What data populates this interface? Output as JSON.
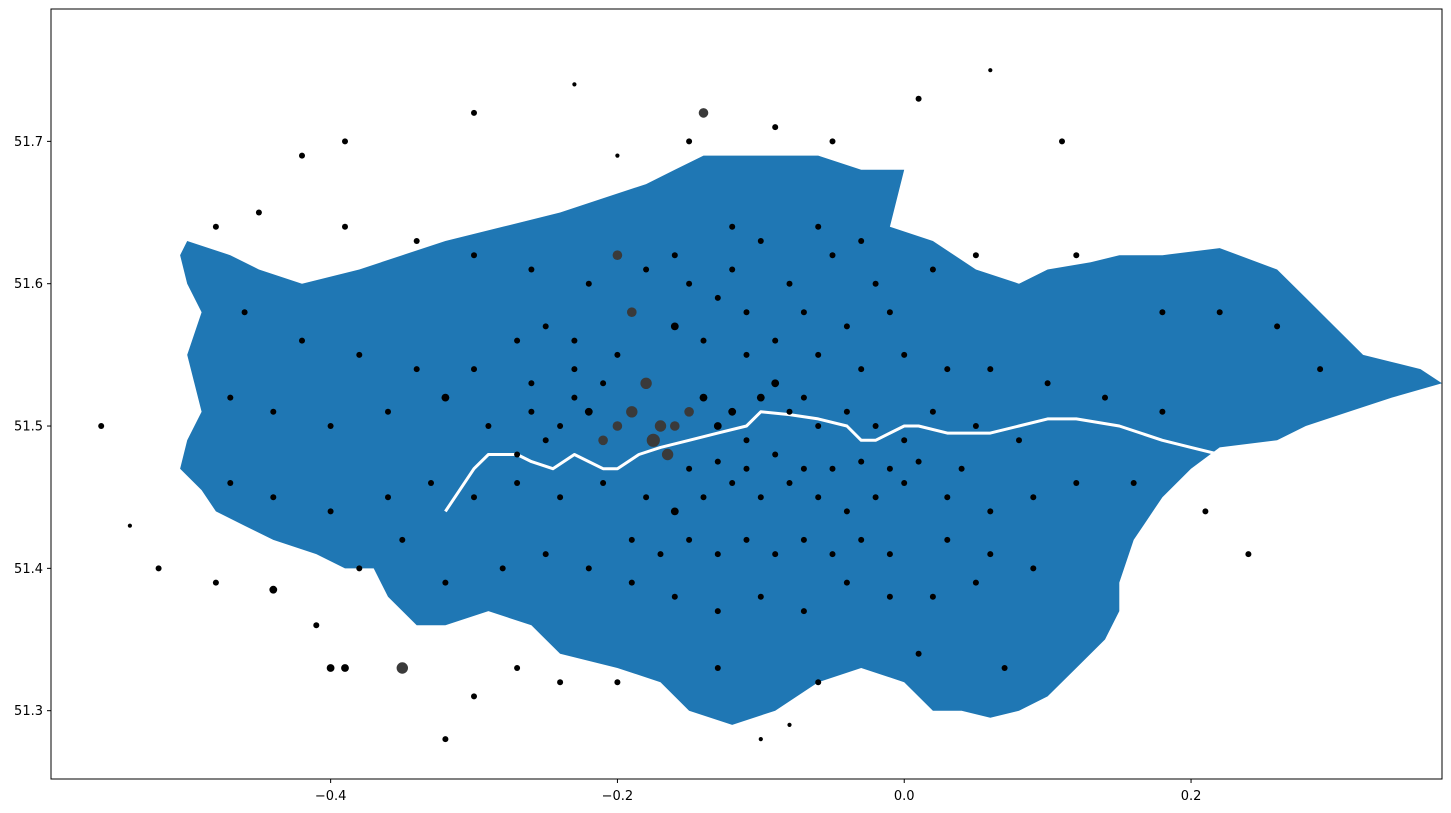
{
  "chart_data": {
    "type": "scatter",
    "title": "",
    "xlabel": "",
    "ylabel": "",
    "xlim": [
      -0.595,
      0.375
    ],
    "ylim": [
      51.252,
      51.793
    ],
    "grid": false,
    "legend": "none",
    "x_ticks": [
      -0.4,
      -0.2,
      0.0,
      0.2
    ],
    "x_tick_labels": [
      "−0.4",
      "−0.2",
      "0.0",
      "0.2"
    ],
    "y_ticks": [
      51.3,
      51.4,
      51.5,
      51.6,
      51.7
    ],
    "y_tick_labels": [
      "51.3",
      "51.4",
      "51.5",
      "51.6",
      "51.7"
    ],
    "colors": {
      "region_fill": "#1f77b4",
      "river": "#ffffff",
      "point": "#000000",
      "point_large": "#3a3a3a"
    },
    "region_outline": [
      [
        -0.5,
        51.63
      ],
      [
        -0.47,
        51.62
      ],
      [
        -0.45,
        51.61
      ],
      [
        -0.42,
        51.6
      ],
      [
        -0.38,
        51.61
      ],
      [
        -0.35,
        51.62
      ],
      [
        -0.32,
        51.63
      ],
      [
        -0.28,
        51.64
      ],
      [
        -0.24,
        51.65
      ],
      [
        -0.21,
        51.66
      ],
      [
        -0.18,
        51.67
      ],
      [
        -0.16,
        51.68
      ],
      [
        -0.14,
        51.69
      ],
      [
        -0.1,
        51.69
      ],
      [
        -0.06,
        51.69
      ],
      [
        -0.03,
        51.68
      ],
      [
        0.0,
        51.68
      ],
      [
        -0.01,
        51.64
      ],
      [
        0.02,
        51.63
      ],
      [
        0.05,
        51.61
      ],
      [
        0.08,
        51.6
      ],
      [
        0.1,
        51.61
      ],
      [
        0.13,
        51.615
      ],
      [
        0.15,
        51.62
      ],
      [
        0.18,
        51.62
      ],
      [
        0.22,
        51.625
      ],
      [
        0.26,
        51.61
      ],
      [
        0.28,
        51.59
      ],
      [
        0.3,
        51.57
      ],
      [
        0.32,
        51.55
      ],
      [
        0.34,
        51.545
      ],
      [
        0.36,
        51.54
      ],
      [
        0.375,
        51.53
      ],
      [
        0.34,
        51.52
      ],
      [
        0.31,
        51.51
      ],
      [
        0.28,
        51.5
      ],
      [
        0.26,
        51.49
      ],
      [
        0.22,
        51.485
      ],
      [
        0.2,
        51.47
      ],
      [
        0.18,
        51.45
      ],
      [
        0.16,
        51.42
      ],
      [
        0.15,
        51.39
      ],
      [
        0.15,
        51.37
      ],
      [
        0.14,
        51.35
      ],
      [
        0.12,
        51.33
      ],
      [
        0.1,
        51.31
      ],
      [
        0.08,
        51.3
      ],
      [
        0.06,
        51.295
      ],
      [
        0.04,
        51.3
      ],
      [
        0.02,
        51.3
      ],
      [
        0.0,
        51.32
      ],
      [
        -0.03,
        51.33
      ],
      [
        -0.06,
        51.32
      ],
      [
        -0.09,
        51.3
      ],
      [
        -0.12,
        51.29
      ],
      [
        -0.15,
        51.3
      ],
      [
        -0.17,
        51.32
      ],
      [
        -0.2,
        51.33
      ],
      [
        -0.24,
        51.34
      ],
      [
        -0.26,
        51.36
      ],
      [
        -0.29,
        51.37
      ],
      [
        -0.32,
        51.36
      ],
      [
        -0.34,
        51.36
      ],
      [
        -0.36,
        51.38
      ],
      [
        -0.37,
        51.4
      ],
      [
        -0.39,
        51.4
      ],
      [
        -0.41,
        51.41
      ],
      [
        -0.44,
        51.42
      ],
      [
        -0.46,
        51.43
      ],
      [
        -0.48,
        51.44
      ],
      [
        -0.49,
        51.455
      ],
      [
        -0.505,
        51.47
      ],
      [
        -0.5,
        51.49
      ],
      [
        -0.49,
        51.51
      ],
      [
        -0.495,
        51.53
      ],
      [
        -0.5,
        51.55
      ],
      [
        -0.49,
        51.58
      ],
      [
        -0.5,
        51.6
      ],
      [
        -0.505,
        51.62
      ],
      [
        -0.5,
        51.63
      ]
    ],
    "river_path": [
      [
        -0.32,
        51.44
      ],
      [
        -0.31,
        51.455
      ],
      [
        -0.3,
        51.47
      ],
      [
        -0.29,
        51.48
      ],
      [
        -0.27,
        51.48
      ],
      [
        -0.26,
        51.475
      ],
      [
        -0.245,
        51.47
      ],
      [
        -0.23,
        51.48
      ],
      [
        -0.22,
        51.475
      ],
      [
        -0.21,
        51.47
      ],
      [
        -0.2,
        51.47
      ],
      [
        -0.185,
        51.48
      ],
      [
        -0.17,
        51.485
      ],
      [
        -0.15,
        51.49
      ],
      [
        -0.13,
        51.495
      ],
      [
        -0.11,
        51.5
      ],
      [
        -0.1,
        51.51
      ],
      [
        -0.08,
        51.508
      ],
      [
        -0.06,
        51.505
      ],
      [
        -0.04,
        51.5
      ],
      [
        -0.03,
        51.49
      ],
      [
        -0.02,
        51.49
      ],
      [
        -0.01,
        51.495
      ],
      [
        0.0,
        51.5
      ],
      [
        0.01,
        51.5
      ],
      [
        0.03,
        51.495
      ],
      [
        0.06,
        51.495
      ],
      [
        0.08,
        51.5
      ],
      [
        0.1,
        51.505
      ],
      [
        0.12,
        51.505
      ],
      [
        0.15,
        51.5
      ],
      [
        0.18,
        51.49
      ],
      [
        0.2,
        51.485
      ],
      [
        0.22,
        51.48
      ]
    ],
    "points": [
      [
        -0.39,
        51.7,
        2
      ],
      [
        -0.42,
        51.69,
        2
      ],
      [
        -0.3,
        51.72,
        2
      ],
      [
        -0.23,
        51.74,
        1
      ],
      [
        -0.14,
        51.72,
        4
      ],
      [
        -0.15,
        51.7,
        2
      ],
      [
        -0.2,
        51.69,
        1
      ],
      [
        -0.09,
        51.71,
        2
      ],
      [
        -0.05,
        51.7,
        2
      ],
      [
        0.01,
        51.73,
        2
      ],
      [
        0.06,
        51.75,
        1
      ],
      [
        0.11,
        51.7,
        2
      ],
      [
        -0.48,
        51.64,
        2
      ],
      [
        -0.45,
        51.65,
        2
      ],
      [
        -0.39,
        51.64,
        2
      ],
      [
        -0.34,
        51.63,
        2
      ],
      [
        -0.3,
        51.62,
        2
      ],
      [
        -0.26,
        51.61,
        2
      ],
      [
        -0.22,
        51.6,
        2
      ],
      [
        -0.2,
        51.62,
        4
      ],
      [
        -0.18,
        51.61,
        2
      ],
      [
        -0.16,
        51.62,
        2
      ],
      [
        -0.12,
        51.61,
        2
      ],
      [
        -0.08,
        51.6,
        2
      ],
      [
        -0.05,
        51.62,
        2
      ],
      [
        -0.02,
        51.6,
        2
      ],
      [
        0.02,
        51.61,
        2
      ],
      [
        0.05,
        51.62,
        2
      ],
      [
        0.12,
        51.62,
        2
      ],
      [
        0.18,
        51.58,
        2
      ],
      [
        0.22,
        51.58,
        2
      ],
      [
        0.26,
        51.57,
        2
      ],
      [
        0.29,
        51.54,
        2
      ],
      [
        -0.46,
        51.58,
        2
      ],
      [
        -0.42,
        51.56,
        2
      ],
      [
        -0.38,
        51.55,
        2
      ],
      [
        -0.34,
        51.54,
        2
      ],
      [
        -0.3,
        51.54,
        2
      ],
      [
        -0.26,
        51.53,
        2
      ],
      [
        -0.23,
        51.54,
        2
      ],
      [
        -0.2,
        51.55,
        2
      ],
      [
        -0.19,
        51.58,
        4
      ],
      [
        -0.16,
        51.57,
        3
      ],
      [
        -0.14,
        51.56,
        2
      ],
      [
        -0.11,
        51.55,
        2
      ],
      [
        -0.09,
        51.56,
        2
      ],
      [
        -0.06,
        51.55,
        2
      ],
      [
        -0.03,
        51.54,
        2
      ],
      [
        0.0,
        51.55,
        2
      ],
      [
        0.03,
        51.54,
        2
      ],
      [
        0.06,
        51.54,
        2
      ],
      [
        0.1,
        51.53,
        2
      ],
      [
        0.14,
        51.52,
        2
      ],
      [
        0.18,
        51.51,
        2
      ],
      [
        -0.47,
        51.52,
        2
      ],
      [
        -0.44,
        51.51,
        2
      ],
      [
        -0.4,
        51.5,
        2
      ],
      [
        -0.36,
        51.51,
        2
      ],
      [
        -0.32,
        51.52,
        3
      ],
      [
        -0.29,
        51.5,
        2
      ],
      [
        -0.26,
        51.51,
        2
      ],
      [
        -0.24,
        51.5,
        2
      ],
      [
        -0.22,
        51.51,
        3
      ],
      [
        -0.21,
        51.49,
        4
      ],
      [
        -0.2,
        51.5,
        4
      ],
      [
        -0.19,
        51.51,
        5
      ],
      [
        -0.18,
        51.53,
        5
      ],
      [
        -0.175,
        51.49,
        6
      ],
      [
        -0.17,
        51.5,
        5
      ],
      [
        -0.165,
        51.48,
        5
      ],
      [
        -0.16,
        51.5,
        4
      ],
      [
        -0.15,
        51.51,
        4
      ],
      [
        -0.14,
        51.52,
        3
      ],
      [
        -0.13,
        51.5,
        3
      ],
      [
        -0.12,
        51.51,
        3
      ],
      [
        -0.11,
        51.49,
        2
      ],
      [
        -0.1,
        51.52,
        3
      ],
      [
        -0.09,
        51.53,
        3
      ],
      [
        -0.08,
        51.51,
        2
      ],
      [
        -0.07,
        51.52,
        2
      ],
      [
        -0.06,
        51.5,
        2
      ],
      [
        -0.04,
        51.51,
        2
      ],
      [
        -0.02,
        51.5,
        2
      ],
      [
        0.0,
        51.49,
        2
      ],
      [
        0.02,
        51.51,
        2
      ],
      [
        0.05,
        51.5,
        2
      ],
      [
        0.08,
        51.49,
        2
      ],
      [
        -0.47,
        51.46,
        2
      ],
      [
        -0.44,
        51.45,
        2
      ],
      [
        -0.4,
        51.44,
        2
      ],
      [
        -0.36,
        51.45,
        2
      ],
      [
        -0.33,
        51.46,
        2
      ],
      [
        -0.3,
        51.45,
        2
      ],
      [
        -0.27,
        51.46,
        2
      ],
      [
        -0.24,
        51.45,
        2
      ],
      [
        -0.21,
        51.46,
        2
      ],
      [
        -0.18,
        51.45,
        2
      ],
      [
        -0.16,
        51.44,
        3
      ],
      [
        -0.14,
        51.45,
        2
      ],
      [
        -0.12,
        51.46,
        2
      ],
      [
        -0.1,
        51.45,
        2
      ],
      [
        -0.08,
        51.46,
        2
      ],
      [
        -0.06,
        51.45,
        2
      ],
      [
        -0.04,
        51.44,
        2
      ],
      [
        -0.02,
        51.45,
        2
      ],
      [
        0.0,
        51.46,
        2
      ],
      [
        0.03,
        51.45,
        2
      ],
      [
        0.06,
        51.44,
        2
      ],
      [
        0.09,
        51.45,
        2
      ],
      [
        0.12,
        51.46,
        2
      ],
      [
        0.16,
        51.46,
        2
      ],
      [
        -0.52,
        51.4,
        2
      ],
      [
        -0.48,
        51.39,
        2
      ],
      [
        -0.44,
        51.385,
        3
      ],
      [
        -0.41,
        51.36,
        2
      ],
      [
        -0.38,
        51.4,
        2
      ],
      [
        -0.35,
        51.42,
        2
      ],
      [
        -0.32,
        51.39,
        2
      ],
      [
        -0.28,
        51.4,
        2
      ],
      [
        -0.25,
        51.41,
        2
      ],
      [
        -0.22,
        51.4,
        2
      ],
      [
        -0.19,
        51.39,
        2
      ],
      [
        -0.16,
        51.38,
        2
      ],
      [
        -0.13,
        51.37,
        2
      ],
      [
        -0.1,
        51.38,
        2
      ],
      [
        -0.07,
        51.37,
        2
      ],
      [
        -0.04,
        51.39,
        2
      ],
      [
        -0.01,
        51.38,
        2
      ],
      [
        0.02,
        51.38,
        2
      ],
      [
        0.05,
        51.39,
        2
      ],
      [
        0.09,
        51.4,
        2
      ],
      [
        -0.56,
        51.5,
        2
      ],
      [
        -0.54,
        51.43,
        1
      ],
      [
        -0.35,
        51.33,
        5
      ],
      [
        -0.39,
        51.33,
        3
      ],
      [
        -0.4,
        51.33,
        3
      ],
      [
        -0.32,
        51.28,
        2
      ],
      [
        -0.3,
        51.31,
        2
      ],
      [
        -0.27,
        51.33,
        2
      ],
      [
        -0.24,
        51.32,
        2
      ],
      [
        -0.2,
        51.32,
        2
      ],
      [
        -0.1,
        51.28,
        1
      ],
      [
        -0.08,
        51.29,
        1
      ],
      [
        -0.13,
        51.33,
        2
      ],
      [
        -0.06,
        51.32,
        2
      ],
      [
        0.01,
        51.34,
        2
      ],
      [
        0.07,
        51.33,
        2
      ],
      [
        0.21,
        51.44,
        2
      ],
      [
        0.24,
        51.41,
        2
      ],
      [
        -0.12,
        51.64,
        2
      ],
      [
        -0.1,
        51.63,
        2
      ],
      [
        -0.06,
        51.64,
        2
      ],
      [
        -0.03,
        51.63,
        2
      ],
      [
        -0.15,
        51.6,
        2
      ],
      [
        -0.13,
        51.59,
        2
      ],
      [
        -0.11,
        51.58,
        2
      ],
      [
        -0.07,
        51.58,
        2
      ],
      [
        -0.04,
        51.57,
        2
      ],
      [
        -0.01,
        51.58,
        2
      ],
      [
        -0.25,
        51.57,
        2
      ],
      [
        -0.27,
        51.56,
        2
      ],
      [
        -0.23,
        51.56,
        2
      ],
      [
        -0.21,
        51.53,
        2
      ],
      [
        -0.23,
        51.52,
        2
      ],
      [
        -0.25,
        51.49,
        2
      ],
      [
        -0.27,
        51.48,
        2
      ],
      [
        -0.15,
        51.47,
        2
      ],
      [
        -0.13,
        51.475,
        2
      ],
      [
        -0.11,
        51.47,
        2
      ],
      [
        -0.09,
        51.48,
        2
      ],
      [
        -0.07,
        51.47,
        2
      ],
      [
        -0.05,
        51.47,
        2
      ],
      [
        -0.03,
        51.475,
        2
      ],
      [
        -0.01,
        51.47,
        2
      ],
      [
        0.01,
        51.475,
        2
      ],
      [
        0.04,
        51.47,
        2
      ],
      [
        -0.19,
        51.42,
        2
      ],
      [
        -0.17,
        51.41,
        2
      ],
      [
        -0.15,
        51.42,
        2
      ],
      [
        -0.13,
        51.41,
        2
      ],
      [
        -0.11,
        51.42,
        2
      ],
      [
        -0.09,
        51.41,
        2
      ],
      [
        -0.07,
        51.42,
        2
      ],
      [
        -0.05,
        51.41,
        2
      ],
      [
        -0.03,
        51.42,
        2
      ],
      [
        -0.01,
        51.41,
        2
      ],
      [
        0.03,
        51.42,
        2
      ],
      [
        0.06,
        51.41,
        2
      ]
    ]
  }
}
